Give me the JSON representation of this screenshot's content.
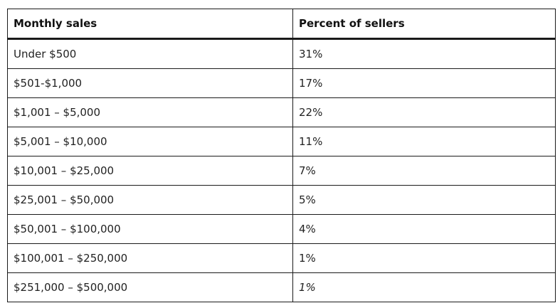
{
  "table": {
    "headers": [
      "Monthly sales",
      "Percent of sellers"
    ],
    "rows": [
      [
        "Under $500",
        "31%"
      ],
      [
        "$501-$1,000",
        "17%"
      ],
      [
        "$1,001 – $5,000",
        "22%"
      ],
      [
        "$5,001 – $10,000",
        "11%"
      ],
      [
        "$10,001 – $25,000",
        "7%"
      ],
      [
        "$25,001 – $50,000",
        "5%"
      ],
      [
        "$50,001 – $100,000",
        "4%"
      ],
      [
        "$100,001 – $250,000",
        "1%"
      ],
      [
        "$251,000 – $500,000",
        "1%"
      ]
    ]
  }
}
